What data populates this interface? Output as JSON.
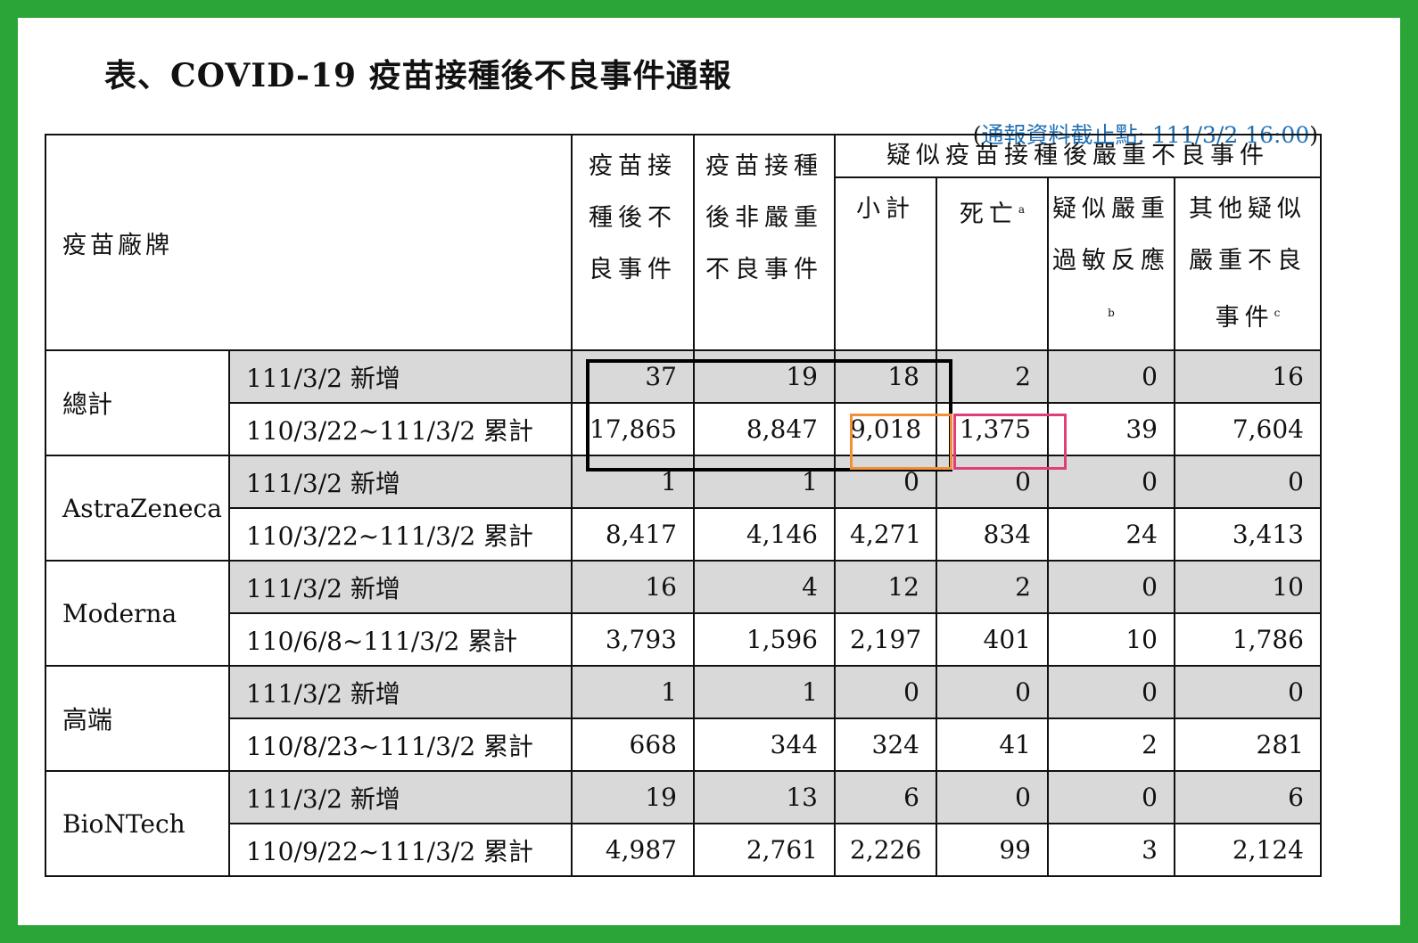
{
  "title": "表、COVID-19 疫苗接種後不良事件通報",
  "note": {
    "open": "(",
    "text": "通報資料截止點: 111/3/2 16:00",
    "close": ")"
  },
  "headers": {
    "brand": "疫苗廠牌",
    "adverse": "疫苗接種後不良事件",
    "non_serious": "疫苗接種後非嚴重不良事件",
    "serious_group": "疑似疫苗接種後嚴重不良事件",
    "subtotal": "小計",
    "death": "死亡",
    "death_sup": "a",
    "allergy": "疑似嚴重過敏反應",
    "allergy_sup": "b",
    "other": "其他疑似嚴重不良事件",
    "other_sup": "c"
  },
  "groups": [
    {
      "brand": "總計",
      "rows": [
        {
          "period": "111/3/2 新增",
          "values": [
            "37",
            "19",
            "18",
            "2",
            "0",
            "16"
          ]
        },
        {
          "period": "110/3/22~111/3/2 累計",
          "values": [
            "17,865",
            "8,847",
            "9,018",
            "1,375",
            "39",
            "7,604"
          ]
        }
      ]
    },
    {
      "brand": "AstraZeneca",
      "rows": [
        {
          "period": "111/3/2 新增",
          "values": [
            "1",
            "1",
            "0",
            "0",
            "0",
            "0"
          ]
        },
        {
          "period": "110/3/22~111/3/2 累計",
          "values": [
            "8,417",
            "4,146",
            "4,271",
            "834",
            "24",
            "3,413"
          ]
        }
      ]
    },
    {
      "brand": "Moderna",
      "rows": [
        {
          "period": "111/3/2 新增",
          "values": [
            "16",
            "4",
            "12",
            "2",
            "0",
            "10"
          ]
        },
        {
          "period": "110/6/8~111/3/2 累計",
          "values": [
            "3,793",
            "1,596",
            "2,197",
            "401",
            "10",
            "1,786"
          ]
        }
      ]
    },
    {
      "brand": "高端",
      "rows": [
        {
          "period": "111/3/2 新增",
          "values": [
            "1",
            "1",
            "0",
            "0",
            "0",
            "0"
          ]
        },
        {
          "period": "110/8/23~111/3/2 累計",
          "values": [
            "668",
            "344",
            "324",
            "41",
            "2",
            "281"
          ]
        }
      ]
    },
    {
      "brand": "BioNTech",
      "rows": [
        {
          "period": "111/3/2 新增",
          "values": [
            "19",
            "13",
            "6",
            "0",
            "0",
            "6"
          ]
        },
        {
          "period": "110/9/22~111/3/2 累計",
          "values": [
            "4,987",
            "2,761",
            "2,226",
            "99",
            "3",
            "2,124"
          ]
        }
      ]
    }
  ],
  "colors": {
    "frame": "#2ca538",
    "row_shade": "#d9d9d9",
    "note_text": "#1f6fb3",
    "highlight_black": "#000000",
    "highlight_orange": "#f0913a",
    "highlight_pink": "#e03e7a"
  }
}
